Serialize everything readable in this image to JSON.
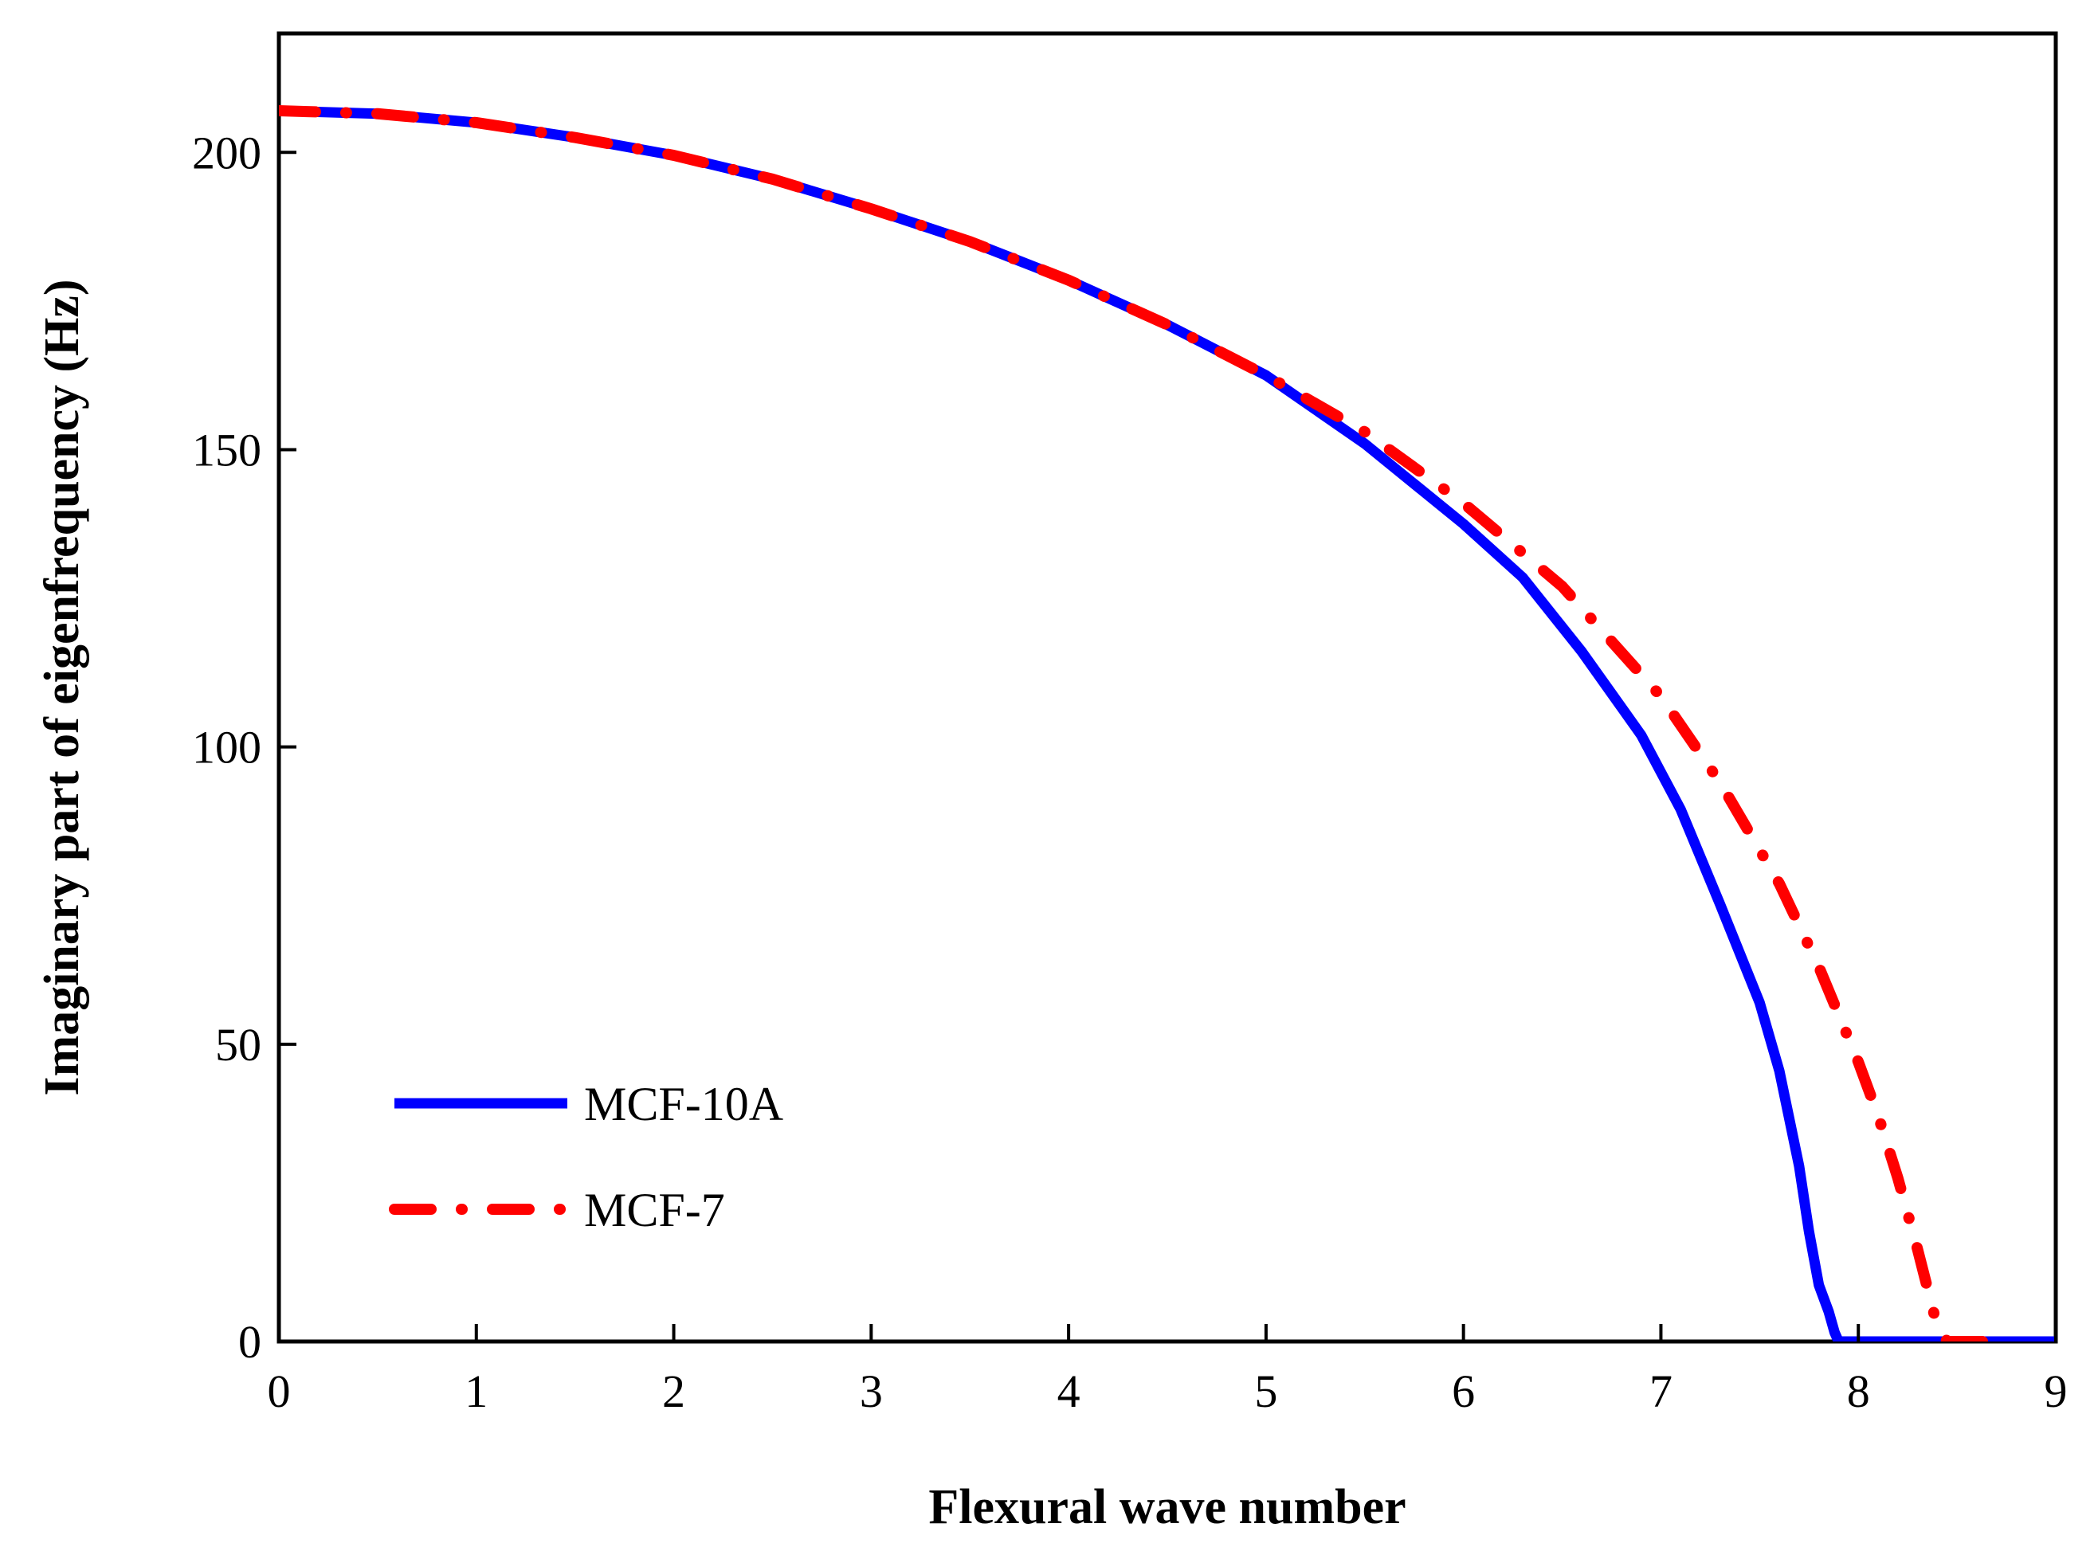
{
  "chart_data": {
    "type": "line",
    "title": "",
    "xlabel": "Flexural wave number",
    "ylabel": "Imaginary part of eigenfrequency (Hz)",
    "xlim": [
      0,
      9
    ],
    "ylim": [
      0,
      220
    ],
    "xticks": [
      0,
      1,
      2,
      3,
      4,
      5,
      6,
      7,
      8,
      9
    ],
    "yticks": [
      0,
      50,
      100,
      150,
      200
    ],
    "xtick_labels": [
      "0",
      "1",
      "2",
      "3",
      "4",
      "5",
      "6",
      "7",
      "8",
      "9"
    ],
    "ytick_labels": [
      "0",
      "50",
      "100",
      "150",
      "200"
    ],
    "grid": false,
    "legend_position": "bottom-left",
    "series": [
      {
        "name": "MCF-10A",
        "color": "#0000ff",
        "style": "solid",
        "x": [
          0,
          0.5,
          1,
          1.5,
          2,
          2.5,
          3,
          3.5,
          4,
          4.5,
          5,
          5.5,
          6,
          6.3,
          6.6,
          6.9,
          7.1,
          7.3,
          7.5,
          7.6,
          7.7,
          7.75,
          7.8,
          7.85,
          7.88,
          7.9,
          8.0,
          9.0
        ],
        "y": [
          207,
          206.5,
          205,
          202.5,
          199.5,
          195.5,
          190.5,
          185,
          178.5,
          171,
          162.5,
          151,
          137.5,
          128.5,
          116,
          102,
          89.5,
          73.5,
          57,
          45.5,
          29.5,
          18.5,
          9.5,
          5,
          1.5,
          0,
          0,
          0
        ]
      },
      {
        "name": "MCF-7",
        "color": "#ff0000",
        "style": "dash-dot",
        "x": [
          0,
          0.5,
          1,
          1.5,
          2,
          2.5,
          3,
          3.5,
          4,
          4.5,
          5,
          5.5,
          6,
          6.5,
          7,
          7.3,
          7.6,
          7.8,
          8.0,
          8.1,
          8.2,
          8.3,
          8.35,
          8.4,
          8.45,
          8.5,
          8.6,
          8.75
        ],
        "y": [
          207,
          206.5,
          205,
          202.5,
          199.5,
          195.5,
          190.5,
          185,
          178.5,
          171,
          162.5,
          153,
          141,
          127,
          108.5,
          94,
          77,
          63,
          47,
          38,
          27.5,
          15.5,
          9,
          2.5,
          0,
          0,
          0,
          0
        ]
      }
    ]
  }
}
